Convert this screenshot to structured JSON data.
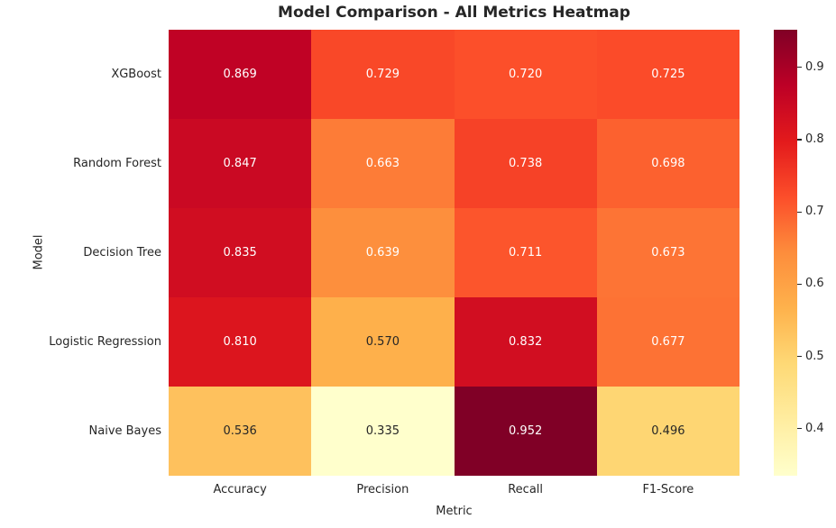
{
  "chart_data": {
    "type": "heatmap",
    "title": "Model Comparison - All Metrics Heatmap",
    "xlabel": "Metric",
    "ylabel": "Model",
    "columns": [
      "Accuracy",
      "Precision",
      "Recall",
      "F1-Score"
    ],
    "rows": [
      "XGBoost",
      "Random Forest",
      "Decision Tree",
      "Logistic Regression",
      "Naive Bayes"
    ],
    "values": [
      [
        0.869,
        0.729,
        0.72,
        0.725
      ],
      [
        0.847,
        0.663,
        0.738,
        0.698
      ],
      [
        0.835,
        0.639,
        0.711,
        0.673
      ],
      [
        0.81,
        0.57,
        0.832,
        0.677
      ],
      [
        0.536,
        0.335,
        0.952,
        0.496
      ]
    ],
    "value_decimals": 3,
    "vmin": 0.335,
    "vmax": 0.952,
    "colormap": "YlOrRd",
    "colormap_stops": [
      "#ffffcc",
      "#ffeda0",
      "#fed976",
      "#feb24c",
      "#fd8d3c",
      "#fc4e2a",
      "#e31a1c",
      "#bd0026",
      "#800026"
    ],
    "colorbar_ticks": [
      0.4,
      0.5,
      0.6,
      0.7,
      0.8,
      0.9
    ],
    "colorbar_tick_decimals": 1,
    "colorbar_position": "right",
    "grid": false,
    "annotations": true,
    "text_colors": {
      "dark": "#262626",
      "light": "#ffffff"
    },
    "background": "#ffffff"
  }
}
